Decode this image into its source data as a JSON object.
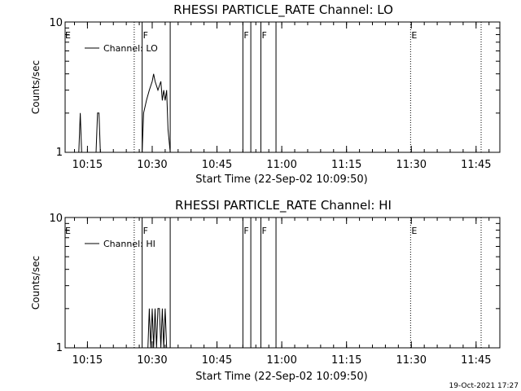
{
  "chart_data": [
    {
      "type": "line",
      "title": "RHESSI PARTICLE_RATE Channel: LO",
      "xlabel": "Start Time (22-Sep-02 10:09:50)",
      "ylabel": "Counts/sec",
      "yscale": "log",
      "ylim": [
        1,
        10
      ],
      "ytick_labels": [
        "1",
        "10"
      ],
      "x_ticks": [
        "10:15",
        "10:30",
        "10:45",
        "11:00",
        "11:15",
        "11:30",
        "11:45"
      ],
      "xlim": [
        "10:09:50",
        "11:50:30"
      ],
      "legend": {
        "label": "Channel: LO",
        "placement": "top-left"
      },
      "flag_lines": [
        {
          "t": "10:25:50",
          "style": "dotted",
          "label": ""
        },
        {
          "t": "10:27:40",
          "style": "solid",
          "label": "F"
        },
        {
          "t": "10:34:10",
          "style": "solid",
          "label": ""
        },
        {
          "t": "10:51:00",
          "style": "solid",
          "label": "F"
        },
        {
          "t": "10:52:50",
          "style": "solid",
          "label": ""
        },
        {
          "t": "10:55:10",
          "style": "solid",
          "label": "F"
        },
        {
          "t": "10:58:40",
          "style": "solid",
          "label": ""
        },
        {
          "t": "11:29:50",
          "style": "dotted",
          "label": "E"
        },
        {
          "t": "11:46:10",
          "style": "dotted",
          "label": ""
        }
      ],
      "flag_label_start": "E",
      "series": [
        {
          "points": [
            [
              "10:13:00",
              1
            ],
            [
              "10:13:20",
              2
            ],
            [
              "10:13:40",
              1
            ],
            [
              "10:17:00",
              1
            ],
            [
              "10:17:20",
              2
            ],
            [
              "10:17:40",
              2
            ],
            [
              "10:18:00",
              1
            ],
            [
              "10:27:40",
              1
            ],
            [
              "10:28:00",
              2
            ],
            [
              "10:28:40",
              2.5
            ],
            [
              "10:29:20",
              3
            ],
            [
              "10:30:00",
              3.5
            ],
            [
              "10:30:20",
              4
            ],
            [
              "10:30:40",
              3.5
            ],
            [
              "10:31:20",
              3
            ],
            [
              "10:32:00",
              3.5
            ],
            [
              "10:32:20",
              2.5
            ],
            [
              "10:32:40",
              3
            ],
            [
              "10:33:00",
              2.5
            ],
            [
              "10:33:20",
              3
            ],
            [
              "10:33:40",
              1.5
            ],
            [
              "10:34:10",
              1
            ]
          ]
        }
      ]
    },
    {
      "type": "line",
      "title": "RHESSI PARTICLE_RATE Channel: HI",
      "xlabel": "Start Time (22-Sep-02 10:09:50)",
      "ylabel": "Counts/sec",
      "yscale": "log",
      "ylim": [
        1,
        10
      ],
      "ytick_labels": [
        "1",
        "10"
      ],
      "x_ticks": [
        "10:15",
        "10:30",
        "10:45",
        "11:00",
        "11:15",
        "11:30",
        "11:45"
      ],
      "xlim": [
        "10:09:50",
        "11:50:30"
      ],
      "legend": {
        "label": "Channel: HI",
        "placement": "top-left"
      },
      "flag_lines": [
        {
          "t": "10:25:50",
          "style": "dotted",
          "label": ""
        },
        {
          "t": "10:27:40",
          "style": "solid",
          "label": "F"
        },
        {
          "t": "10:34:10",
          "style": "solid",
          "label": ""
        },
        {
          "t": "10:51:00",
          "style": "solid",
          "label": "F"
        },
        {
          "t": "10:52:50",
          "style": "solid",
          "label": ""
        },
        {
          "t": "10:55:10",
          "style": "solid",
          "label": "F"
        },
        {
          "t": "10:58:40",
          "style": "solid",
          "label": ""
        },
        {
          "t": "11:29:50",
          "style": "dotted",
          "label": "E"
        },
        {
          "t": "11:46:10",
          "style": "dotted",
          "label": ""
        }
      ],
      "flag_label_start": "E",
      "series": [
        {
          "points": [
            [
              "10:29:00",
              1
            ],
            [
              "10:29:20",
              2
            ],
            [
              "10:29:40",
              1
            ],
            [
              "10:30:00",
              2
            ],
            [
              "10:30:20",
              1
            ],
            [
              "10:30:40",
              2
            ],
            [
              "10:31:00",
              1
            ],
            [
              "10:31:20",
              2
            ],
            [
              "10:31:40",
              2
            ],
            [
              "10:32:00",
              1
            ],
            [
              "10:32:20",
              2
            ],
            [
              "10:32:40",
              1
            ],
            [
              "10:33:00",
              2
            ],
            [
              "10:33:20",
              1
            ]
          ]
        }
      ]
    }
  ],
  "timestamp": "19-Oct-2021 17:27"
}
